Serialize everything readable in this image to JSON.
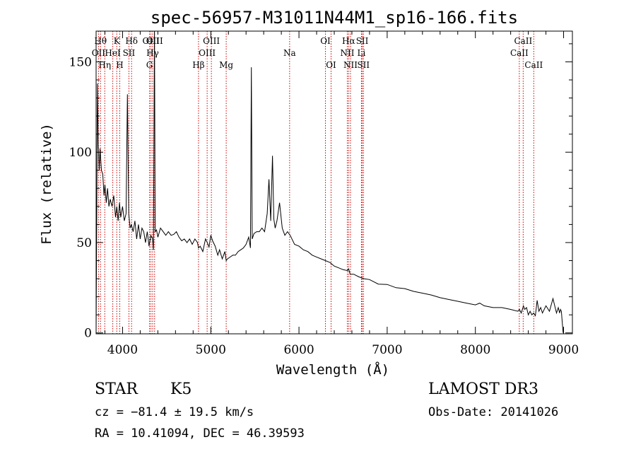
{
  "chart_data": {
    "type": "line",
    "title": "spec-56957-M31011N44M1_sp16-166.fits",
    "xlabel": "Wavelength (Å)",
    "ylabel": "Flux (relative)",
    "xlim": [
      3700,
      9100
    ],
    "ylim": [
      -5,
      1670
    ],
    "xticks": [
      4000,
      5000,
      6000,
      7000,
      8000,
      9000
    ],
    "xtick_labels": [
      "4000",
      "5000",
      "6000",
      "7000",
      "8000",
      "9000"
    ],
    "yticks": [
      0,
      50,
      100,
      150
    ],
    "ytick_labels": [
      "0",
      "50",
      "100",
      "150"
    ],
    "ytick_positions": [
      0,
      500,
      1000,
      1500
    ],
    "spectrum": {
      "x": [
        3700,
        3715,
        3725,
        3735,
        3745,
        3760,
        3775,
        3790,
        3800,
        3815,
        3830,
        3845,
        3860,
        3880,
        3900,
        3920,
        3935,
        3950,
        3965,
        3980,
        4000,
        4020,
        4040,
        4055,
        4070,
        4085,
        4100,
        4120,
        4140,
        4160,
        4180,
        4200,
        4220,
        4240,
        4260,
        4280,
        4300,
        4320,
        4340,
        4350,
        4362,
        4370,
        4385,
        4400,
        4430,
        4460,
        4490,
        4520,
        4550,
        4580,
        4610,
        4640,
        4670,
        4700,
        4730,
        4760,
        4790,
        4820,
        4850,
        4861,
        4880,
        4910,
        4940,
        4960,
        4980,
        5000,
        5020,
        5050,
        5080,
        5100,
        5130,
        5160,
        5175,
        5190,
        5220,
        5250,
        5280,
        5310,
        5340,
        5370,
        5400,
        5430,
        5450,
        5460,
        5470,
        5490,
        5520,
        5550,
        5580,
        5610,
        5640,
        5660,
        5680,
        5700,
        5715,
        5730,
        5750,
        5780,
        5810,
        5840,
        5870,
        5900,
        5950,
        6000,
        6050,
        6100,
        6150,
        6200,
        6250,
        6300,
        6350,
        6400,
        6450,
        6500,
        6550,
        6563,
        6580,
        6620,
        6680,
        6740,
        6800,
        6900,
        7000,
        7100,
        7200,
        7300,
        7400,
        7500,
        7600,
        7700,
        7800,
        7900,
        8000,
        8050,
        8100,
        8200,
        8300,
        8400,
        8480,
        8500,
        8520,
        8545,
        8560,
        8580,
        8600,
        8620,
        8640,
        8660,
        8680,
        8700,
        8720,
        8740,
        8760,
        8800,
        8840,
        8880,
        8920,
        8940,
        8955,
        8965,
        8975,
        8985,
        8995
      ],
      "y": [
        0,
        1380,
        1040,
        900,
        1020,
        900,
        880,
        760,
        820,
        720,
        800,
        700,
        740,
        700,
        760,
        640,
        700,
        620,
        720,
        640,
        700,
        620,
        660,
        1320,
        660,
        580,
        600,
        560,
        620,
        520,
        600,
        520,
        580,
        560,
        500,
        560,
        480,
        540,
        520,
        460,
        1720,
        560,
        570,
        530,
        580,
        560,
        540,
        560,
        540,
        545,
        560,
        530,
        510,
        520,
        500,
        520,
        490,
        520,
        500,
        470,
        480,
        450,
        520,
        500,
        475,
        540,
        510,
        480,
        430,
        460,
        410,
        450,
        400,
        410,
        420,
        430,
        430,
        450,
        460,
        470,
        490,
        530,
        470,
        1470,
        520,
        550,
        560,
        560,
        580,
        560,
        660,
        850,
        620,
        980,
        630,
        580,
        620,
        720,
        580,
        540,
        560,
        540,
        490,
        480,
        460,
        450,
        430,
        420,
        410,
        400,
        390,
        370,
        360,
        350,
        345,
        355,
        325,
        325,
        310,
        300,
        295,
        270,
        268,
        250,
        245,
        230,
        220,
        210,
        195,
        185,
        175,
        165,
        155,
        165,
        150,
        140,
        140,
        130,
        120,
        130,
        110,
        150,
        130,
        140,
        100,
        120,
        100,
        110,
        95,
        180,
        120,
        140,
        110,
        150,
        120,
        190,
        110,
        140,
        110,
        130,
        120,
        60,
        0
      ]
    },
    "lines": [
      {
        "name": "OII",
        "wave": 3727,
        "row": 1
      },
      {
        "name": "Hθ",
        "wave": 3750,
        "row": 0
      },
      {
        "name": "Hη",
        "wave": 3798,
        "row": 2
      },
      {
        "name": "HeI",
        "wave": 3889,
        "row": 1
      },
      {
        "name": "K",
        "wave": 3934,
        "row": 0
      },
      {
        "name": "H",
        "wave": 3968,
        "row": 2
      },
      {
        "name": "SII",
        "wave": 4072,
        "row": 1
      },
      {
        "name": "Hδ",
        "wave": 4102,
        "row": 0
      },
      {
        "name": "G",
        "wave": 4305,
        "row": 2
      },
      {
        "name": "OIII",
        "wave": 4321,
        "row": 0
      },
      {
        "name": "Hγ",
        "wave": 4341,
        "row": 1
      },
      {
        "name": "OIII",
        "wave": 4363,
        "row": 0
      },
      {
        "name": "Hβ",
        "wave": 4861,
        "row": 2
      },
      {
        "name": "OIII",
        "wave": 4959,
        "row": 1
      },
      {
        "name": "OIII",
        "wave": 5007,
        "row": 0
      },
      {
        "name": "Mg",
        "wave": 5175,
        "row": 2
      },
      {
        "name": "Na",
        "wave": 5894,
        "row": 1
      },
      {
        "name": "OI",
        "wave": 6300,
        "row": 0
      },
      {
        "name": "OI",
        "wave": 6364,
        "row": 2
      },
      {
        "name": "NII",
        "wave": 6548,
        "row": 1
      },
      {
        "name": "Hα",
        "wave": 6563,
        "row": 0
      },
      {
        "name": "NII",
        "wave": 6584,
        "row": 2
      },
      {
        "name": "Li",
        "wave": 6708,
        "row": 1
      },
      {
        "name": "SII",
        "wave": 6717,
        "row": 0
      },
      {
        "name": "SII",
        "wave": 6731,
        "row": 2
      },
      {
        "name": "CaII",
        "wave": 8498,
        "row": 1
      },
      {
        "name": "CaII",
        "wave": 8542,
        "row": 0
      },
      {
        "name": "CaII",
        "wave": 8662,
        "row": 2
      }
    ],
    "colors": {
      "line_marker": "#cc0000",
      "spectrum": "#000000",
      "axes": "#000000"
    }
  },
  "info": {
    "object_class": "STAR",
    "subclass": "K5",
    "survey": "LAMOST DR3",
    "cz": "cz = −81.4 ± 19.5 km/s",
    "obs_date": "Obs-Date: 20141026",
    "radec": "RA =  10.41094, DEC =  46.39593"
  }
}
